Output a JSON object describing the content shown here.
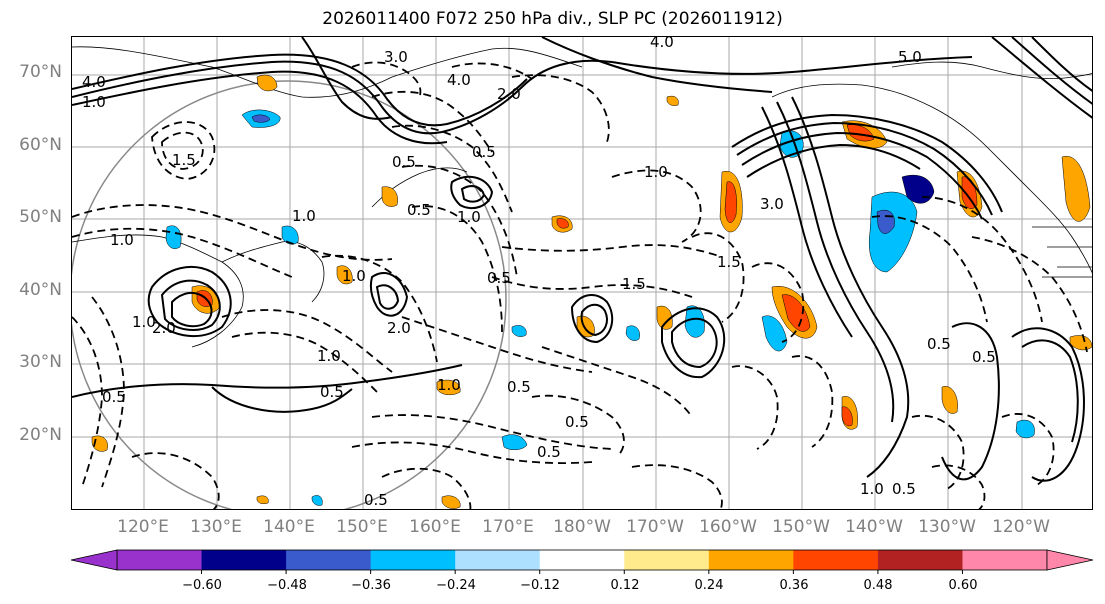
{
  "title": "2026011400 F072 250 hPa div., SLP PC (2026011912)",
  "lat_labels": [
    "70°N",
    "60°N",
    "50°N",
    "40°N",
    "30°N",
    "20°N"
  ],
  "lon_labels": [
    "120°E",
    "130°E",
    "140°E",
    "150°E",
    "160°E",
    "170°E",
    "180°W",
    "170°W",
    "160°W",
    "150°W",
    "140°W",
    "130°W",
    "120°W"
  ],
  "colorbar": {
    "colors": [
      "#9932CC",
      "#00008B",
      "#3A5BCB",
      "#00BFFF",
      "#ADDFFF",
      "#FFFFFF",
      "#FFEB8C",
      "#FFA500",
      "#FF4500",
      "#B22222",
      "#FF88AA"
    ],
    "extend_low_color": "#9932CC",
    "extend_high_color": "#FF88AA",
    "tick_labels": [
      "−0.60",
      "−0.48",
      "−0.36",
      "−0.24",
      "−0.12",
      "0.12",
      "0.24",
      "0.36",
      "0.48",
      "0.60"
    ]
  },
  "contour_labels": [
    "4.0",
    "4.0",
    "5.0",
    "3.0",
    "4.0",
    "1.0",
    "2.0",
    "1.5",
    "0.5",
    "0.5",
    "0.5",
    "1.0",
    "3.0",
    "1.0",
    "1.5",
    "1.0",
    "2.0",
    "1.0",
    "0.5",
    "0.5",
    "1.0",
    "0.5",
    "0.5",
    "0.5",
    "1.0",
    "0.5",
    "2.0",
    "1.5",
    "0.5",
    "1.0",
    "0.5",
    "1.0",
    "0.5",
    "0.5",
    "1.0"
  ]
}
